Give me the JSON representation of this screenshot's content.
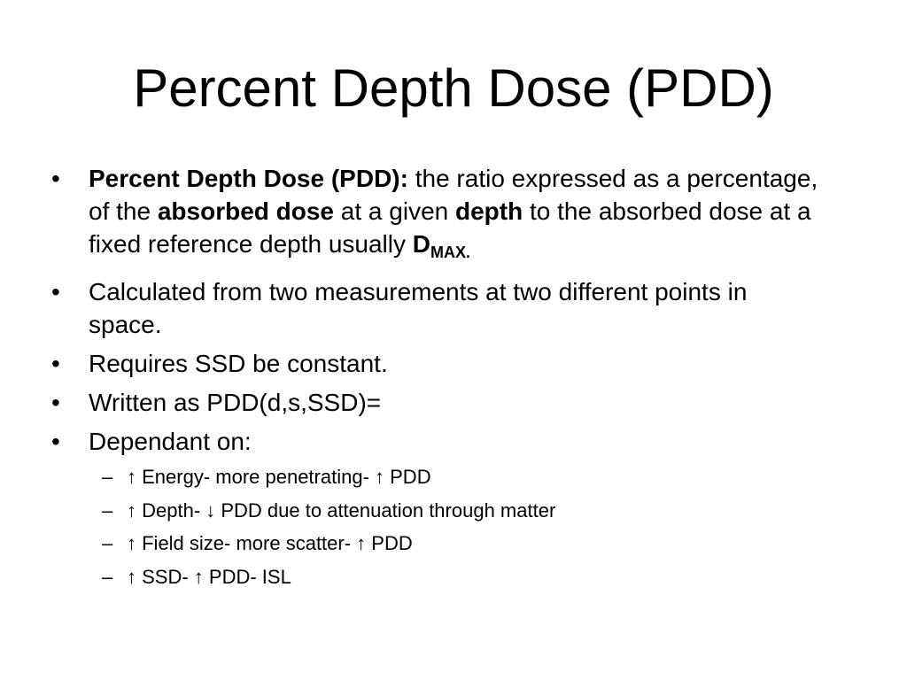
{
  "title": "Percent Depth Dose (PDD)",
  "bullets": [
    {
      "runs": [
        {
          "text": "Percent Depth Dose (PDD):",
          "bold": true
        },
        {
          "text": " the ratio expressed as a percentage, of the "
        },
        {
          "text": "absorbed dose",
          "bold": true
        },
        {
          "text": " at a given "
        },
        {
          "text": "depth",
          "bold": true
        },
        {
          "text": " to the absorbed dose at a fixed reference depth usually "
        },
        {
          "text": "D",
          "bold": true
        },
        {
          "text": "MAX.",
          "bold": true,
          "sub": true
        }
      ]
    },
    {
      "runs": [
        {
          "text": "Calculated from two measurements at two different points in space."
        }
      ]
    },
    {
      "runs": [
        {
          "text": "Requires SSD be constant."
        }
      ]
    },
    {
      "runs": [
        {
          "text": "Written as PDD(d,s,SSD)="
        }
      ]
    },
    {
      "runs": [
        {
          "text": "Dependant on:"
        }
      ],
      "sub_bullets": [
        "↑ Energy- more penetrating- ↑ PDD",
        "↑ Depth- ↓ PDD due to attenuation through matter",
        "↑ Field size- more scatter- ↑ PDD",
        "↑ SSD- ↑ PDD- ISL"
      ]
    }
  ]
}
